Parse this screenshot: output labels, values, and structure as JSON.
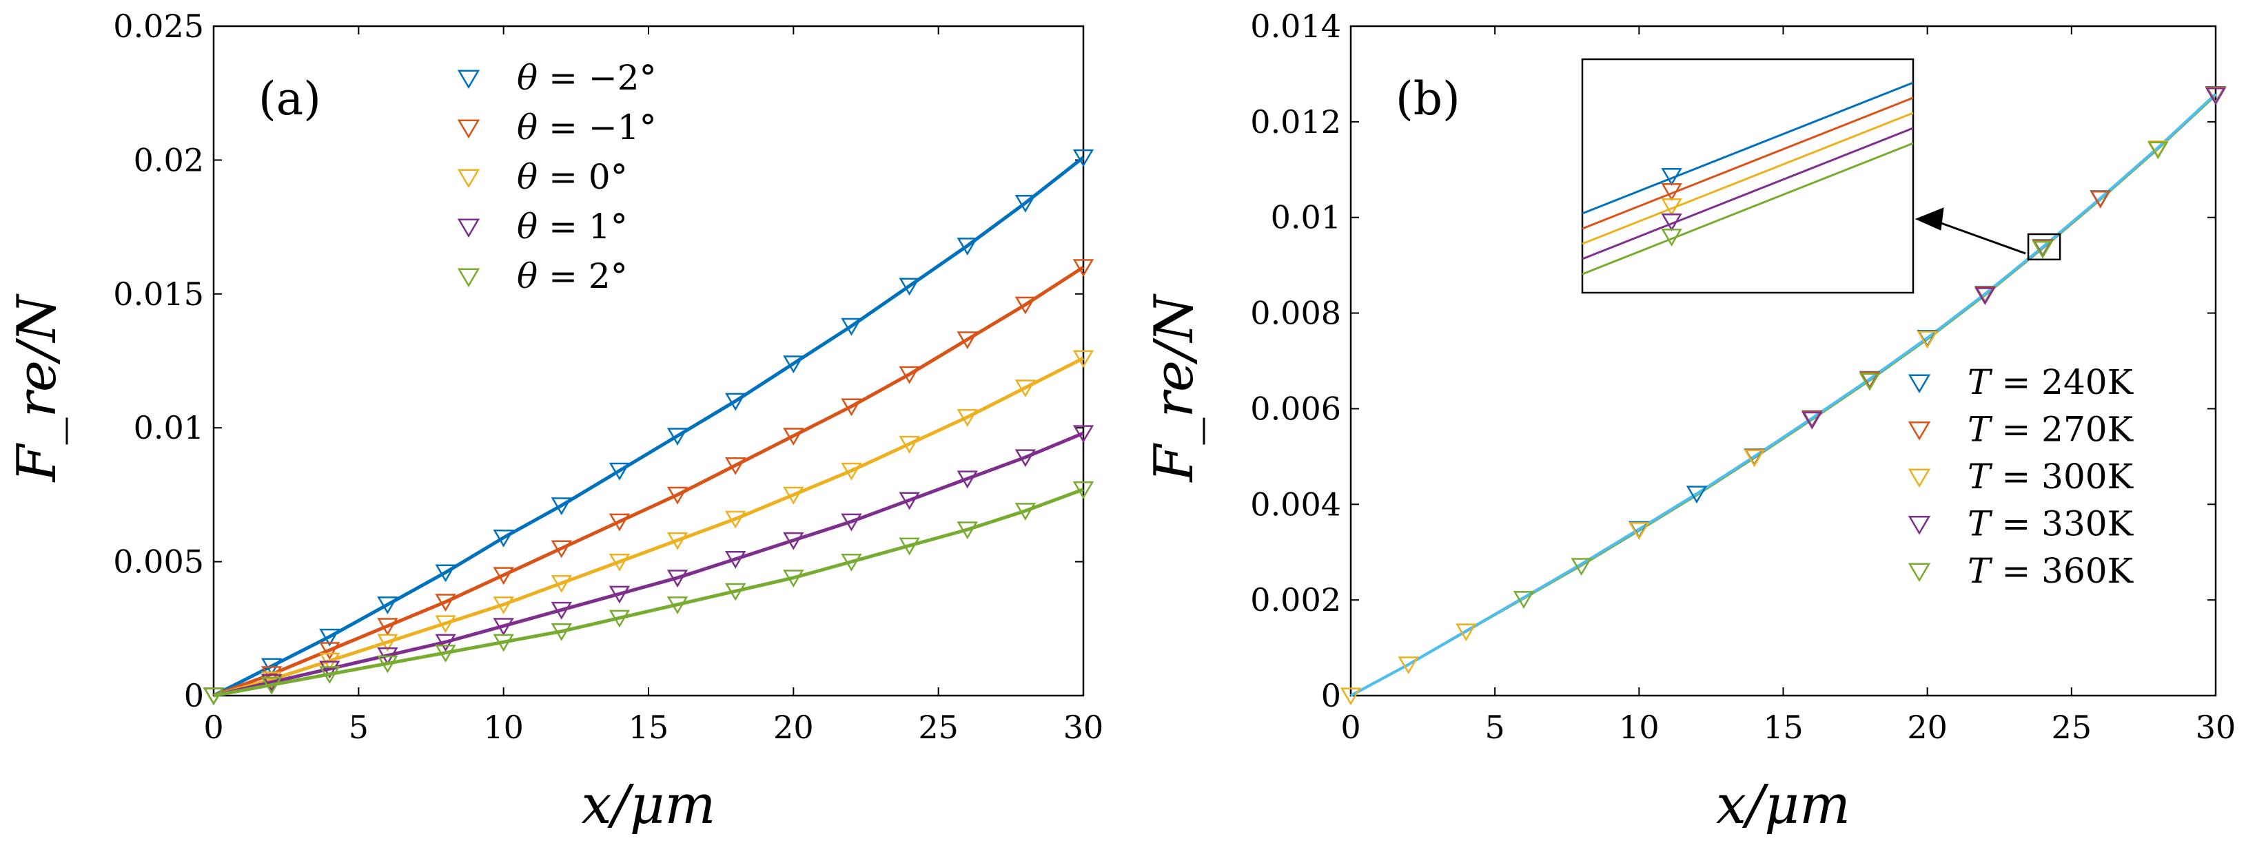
{
  "chart_data": [
    {
      "panel_label": "(a)",
      "type": "line",
      "xlabel": "x/μm",
      "ylabel": "F_re/N",
      "xlim": [
        0,
        30
      ],
      "ylim": [
        0,
        0.025
      ],
      "xticks": [
        "0",
        "5",
        "10",
        "15",
        "20",
        "25",
        "30"
      ],
      "yticks": [
        "0",
        "0.005",
        "0.01",
        "0.015",
        "0.02",
        "0.025"
      ],
      "legend_position": "top-center",
      "marker": "downward-triangle-open",
      "x": [
        0,
        2,
        4,
        6,
        8,
        10,
        12,
        14,
        16,
        18,
        20,
        22,
        24,
        26,
        28,
        30
      ],
      "series": [
        {
          "name": "θ = −2°",
          "var": "θ",
          "rhs": "= −2°",
          "color": "#0072BD",
          "values": [
            0,
            0.0011,
            0.0022,
            0.0034,
            0.0046,
            0.0059,
            0.0071,
            0.0084,
            0.0097,
            0.011,
            0.0124,
            0.0138,
            0.0153,
            0.0168,
            0.0184,
            0.0201
          ]
        },
        {
          "name": "θ = −1°",
          "var": "θ",
          "rhs": "= −1°",
          "color": "#D95319",
          "values": [
            0,
            0.0008,
            0.0017,
            0.0026,
            0.0035,
            0.0045,
            0.0055,
            0.0065,
            0.0075,
            0.0086,
            0.0097,
            0.0108,
            0.012,
            0.0133,
            0.0146,
            0.016
          ]
        },
        {
          "name": "θ = 0°",
          "var": "θ",
          "rhs": "= 0°",
          "color": "#EDB120",
          "values": [
            0,
            0.0006,
            0.0013,
            0.002,
            0.0027,
            0.0034,
            0.0042,
            0.005,
            0.0058,
            0.0066,
            0.0075,
            0.0084,
            0.0094,
            0.0104,
            0.0115,
            0.0126
          ]
        },
        {
          "name": "θ = 1°",
          "var": "θ",
          "rhs": "= 1°",
          "color": "#7E2F8E",
          "values": [
            0,
            0.0005,
            0.001,
            0.0015,
            0.002,
            0.0026,
            0.0032,
            0.0038,
            0.0044,
            0.0051,
            0.0058,
            0.0065,
            0.0073,
            0.0081,
            0.0089,
            0.0098
          ]
        },
        {
          "name": "θ = 2°",
          "var": "θ",
          "rhs": "= 2°",
          "color": "#77AC30",
          "values": [
            0,
            0.0004,
            0.0008,
            0.0012,
            0.0016,
            0.002,
            0.0024,
            0.0029,
            0.0034,
            0.0039,
            0.0044,
            0.005,
            0.0056,
            0.0062,
            0.0069,
            0.0077
          ]
        }
      ]
    },
    {
      "panel_label": "(b)",
      "type": "line",
      "xlabel": "x/μm",
      "ylabel": "F_re/N",
      "xlim": [
        0,
        30
      ],
      "ylim": [
        0,
        0.014
      ],
      "xticks": [
        "0",
        "5",
        "10",
        "15",
        "20",
        "25",
        "30"
      ],
      "yticks": [
        "0",
        "0.002",
        "0.004",
        "0.006",
        "0.008",
        "0.01",
        "0.012",
        "0.014"
      ],
      "legend_position": "bottom-right",
      "marker": "downward-triangle-open",
      "x": [
        0,
        2,
        4,
        6,
        8,
        10,
        12,
        14,
        16,
        18,
        20,
        22,
        24,
        26,
        28,
        30
      ],
      "series": [
        {
          "name": "T = 240K",
          "var": "T",
          "rhs": "= 240K",
          "color": "#0072BD",
          "values": [
            0,
            0.00065,
            0.00135,
            0.00205,
            0.00275,
            0.00348,
            0.00422,
            0.005,
            0.0058,
            0.00662,
            0.00748,
            0.0084,
            0.00938,
            0.0104,
            0.01146,
            0.01258
          ],
          "markers_x": [
            10,
            12,
            14,
            16,
            18,
            20,
            22,
            24,
            26,
            30
          ]
        },
        {
          "name": "T = 270K",
          "var": "T",
          "rhs": "= 270K",
          "color": "#D95319",
          "values": [
            0,
            0.00065,
            0.00134,
            0.00204,
            0.00274,
            0.00347,
            0.00421,
            0.00499,
            0.00579,
            0.00661,
            0.00747,
            0.00839,
            0.00937,
            0.01039,
            0.01145,
            0.01257
          ],
          "markers_x": [
            14,
            16,
            18,
            22,
            24,
            26,
            30
          ]
        },
        {
          "name": "T = 300K",
          "var": "T",
          "rhs": "= 300K",
          "color": "#EDB120",
          "values": [
            0,
            0.00065,
            0.00134,
            0.00204,
            0.00273,
            0.00346,
            0.0042,
            0.00498,
            0.00578,
            0.0066,
            0.00746,
            0.00838,
            0.00936,
            0.01038,
            0.01144,
            0.01256
          ],
          "markers_x": [
            0,
            2,
            4,
            10,
            14,
            20,
            24,
            28,
            30
          ]
        },
        {
          "name": "T = 330K",
          "var": "T",
          "rhs": "= 330K",
          "color": "#7E2F8E",
          "values": [
            0,
            0.00064,
            0.00133,
            0.00203,
            0.00272,
            0.00345,
            0.00419,
            0.00497,
            0.00577,
            0.00659,
            0.00745,
            0.00837,
            0.00935,
            0.01037,
            0.01143,
            0.01255
          ],
          "markers_x": [
            16,
            22,
            24,
            30
          ]
        },
        {
          "name": "T = 360K",
          "var": "T",
          "rhs": "= 360K",
          "color": "#77AC30",
          "values": [
            0,
            0.00064,
            0.00133,
            0.00202,
            0.00271,
            0.00344,
            0.00418,
            0.00496,
            0.00576,
            0.00658,
            0.00744,
            0.00836,
            0.00934,
            0.01036,
            0.01142,
            0.01254
          ],
          "markers_x": [
            6,
            8,
            18,
            24,
            28
          ]
        }
      ],
      "curve_color": "#4DBEEE",
      "inset": {
        "zoom_xlim": [
          23.5,
          24.6
        ],
        "zoom_ylim": [
          0.00912,
          0.00965
        ],
        "marker_x": 24
      }
    }
  ]
}
